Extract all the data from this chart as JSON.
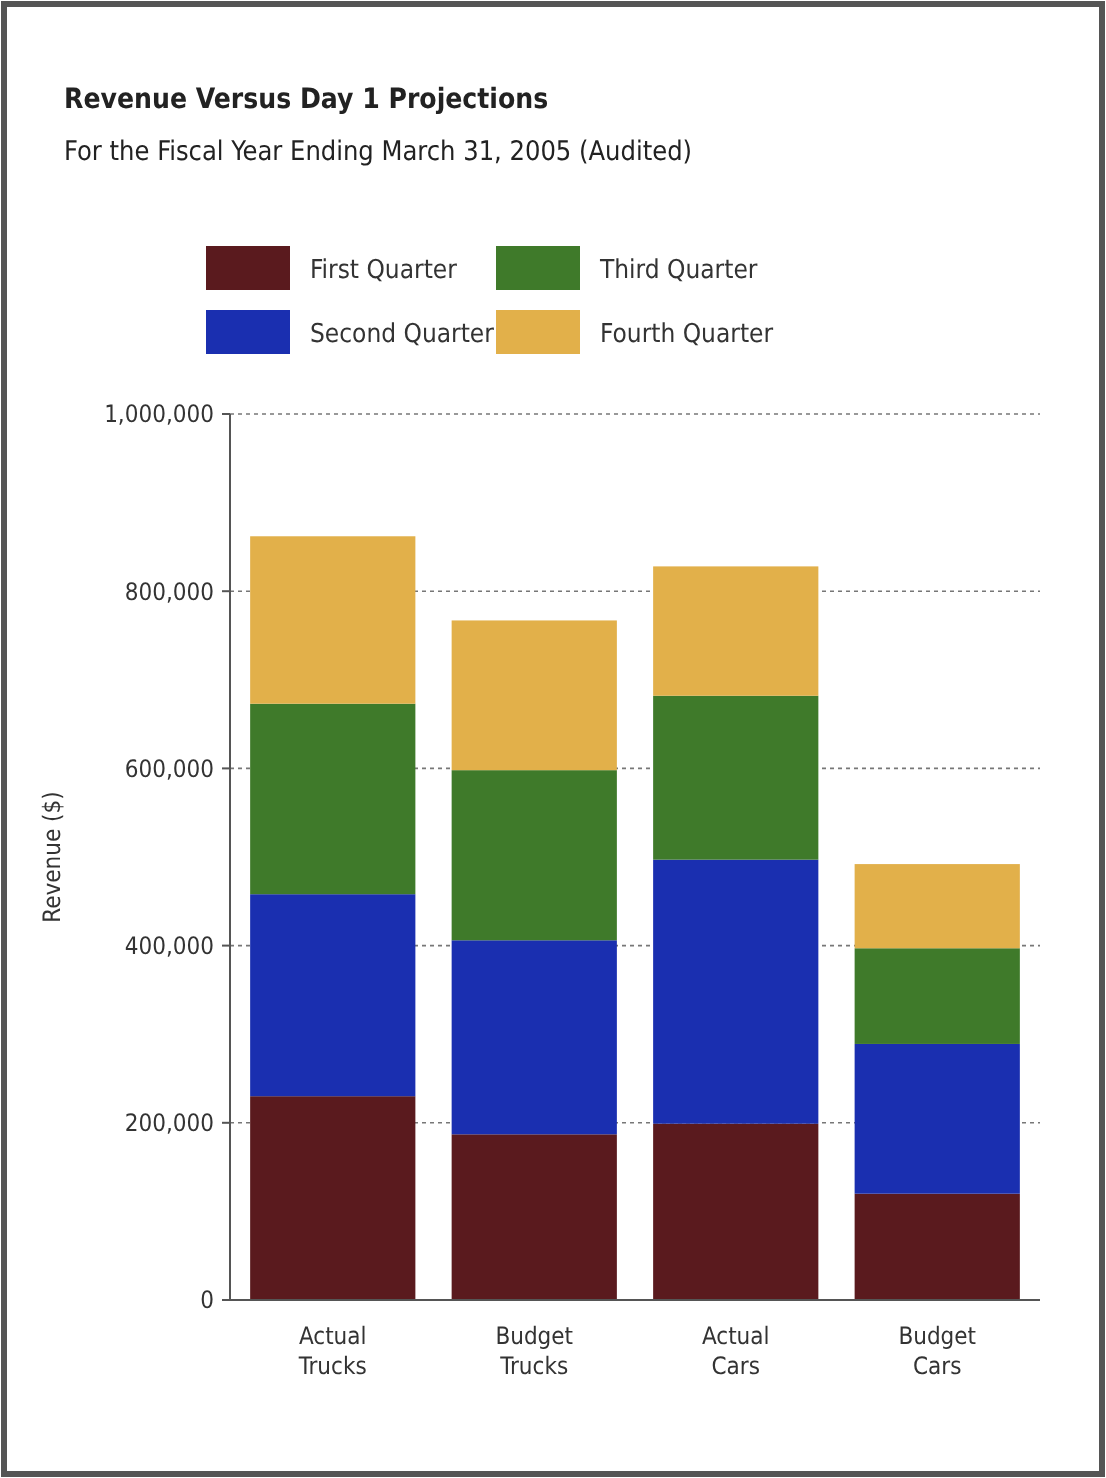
{
  "chart_data": {
    "type": "bar",
    "title": "Revenue Versus Day 1 Projections",
    "subtitle": "For the Fiscal Year Ending March 31, 2005 (Audited)",
    "ylabel": "Revenue ($)",
    "categories": [
      "Actual Trucks",
      "Budget Trucks",
      "Actual Cars",
      "Budget Cars"
    ],
    "stacked": true,
    "series": [
      {
        "name": "First Quarter",
        "color": "#5a1a1e",
        "values": [
          230000,
          187000,
          199000,
          120000
        ]
      },
      {
        "name": "Second Quarter",
        "color": "#1a2fb0",
        "values": [
          228000,
          219000,
          298000,
          169000
        ]
      },
      {
        "name": "Third Quarter",
        "color": "#3f7a2a",
        "values": [
          215000,
          192000,
          185000,
          108000
        ]
      },
      {
        "name": "Fourth Quarter",
        "color": "#e2b04a",
        "values": [
          189000,
          169000,
          146000,
          95000
        ]
      }
    ],
    "ylim": [
      0,
      1000000
    ],
    "yticks": [
      0,
      {
        "value": 200000,
        "label": "200,000"
      },
      {
        "value": 400000,
        "label": "400,000"
      },
      {
        "value": 600000,
        "label": "600,000"
      },
      {
        "value": 800000,
        "label": "800,000"
      },
      {
        "value": 1000000,
        "label": "1,000,000"
      }
    ],
    "grid": "y",
    "legend": "top"
  }
}
